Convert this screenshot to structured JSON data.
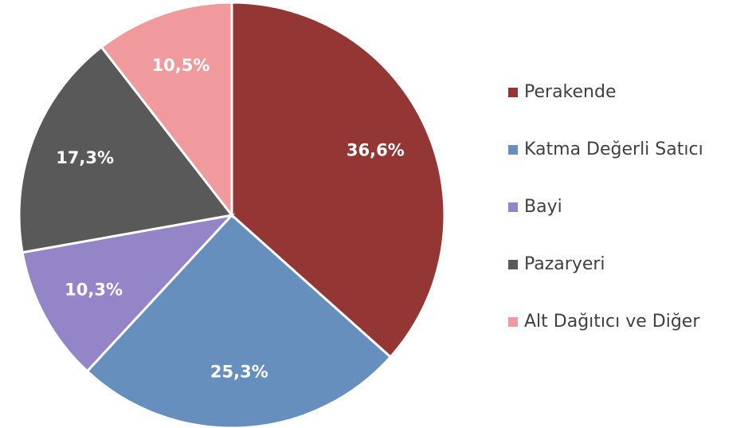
{
  "chart_data": {
    "type": "pie",
    "categories": [
      "Perakende",
      "Katma Değerli Satıcı",
      "Bayi",
      "Pazaryeri",
      "Alt Dağıtıcı ve Diğer"
    ],
    "values": [
      36.6,
      25.3,
      10.3,
      17.3,
      10.5
    ],
    "value_labels": [
      "36,6%",
      "25,3%",
      "10,3%",
      "17,3%",
      "10,5%"
    ],
    "colors": [
      "#943634",
      "#668fbe",
      "#9485c9",
      "#595959",
      "#f09a9e"
    ],
    "legend": "right"
  }
}
